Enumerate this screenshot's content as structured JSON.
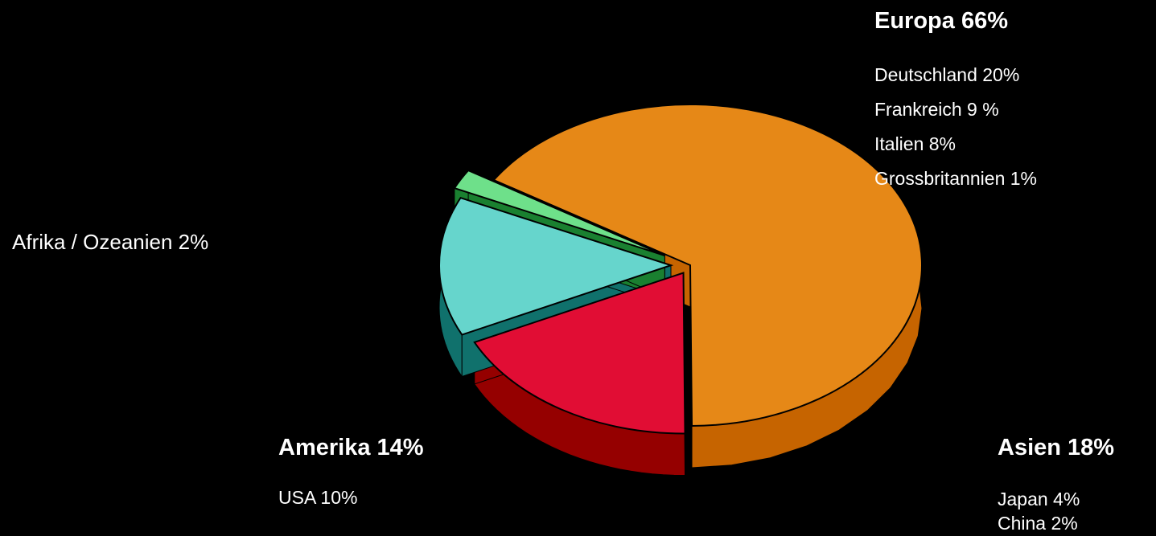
{
  "chart_data": {
    "type": "pie",
    "title": "",
    "slices": [
      {
        "name": "Europa",
        "value": 66,
        "label": "Europa 66%",
        "color": "#E68817",
        "side_color": "#C66400",
        "details": [
          "Deutschland 20%",
          "Frankreich 9 %",
          "Italien 8%",
          "Grossbritannien 1%"
        ]
      },
      {
        "name": "Asien",
        "value": 18,
        "label": "Asien  18%",
        "color": "#E10D34",
        "side_color": "#950000",
        "details": [
          "Japan 4%",
          "China 2%"
        ]
      },
      {
        "name": "Amerika",
        "value": 14,
        "label": "Amerika  14%",
        "color": "#66D5CC",
        "side_color": "#10716C",
        "details": [
          "USA 10%"
        ]
      },
      {
        "name": "Afrika / Ozeanien",
        "value": 2,
        "label": "Afrika / Ozeanien  2%",
        "color": "#6EE08A",
        "side_color": "#1A8030",
        "details": []
      }
    ],
    "style": "3d-exploded"
  }
}
